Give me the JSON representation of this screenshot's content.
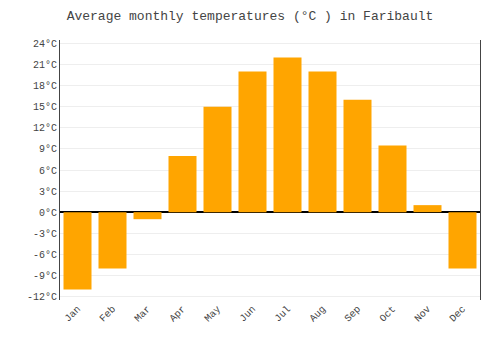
{
  "chart_data": {
    "type": "bar",
    "title": "Average monthly temperatures (°C ) in Faribault",
    "categories": [
      "Jan",
      "Feb",
      "Mar",
      "Apr",
      "May",
      "Jun",
      "Jul",
      "Aug",
      "Sep",
      "Oct",
      "Nov",
      "Dec"
    ],
    "values": [
      -11,
      -8,
      -1,
      8,
      15,
      20,
      22,
      20,
      16,
      9.5,
      1,
      -8
    ],
    "color": "#FFA500",
    "ylim": [
      -12.5,
      24.5
    ],
    "yticks": [
      {
        "value": -12,
        "label": "-12°C"
      },
      {
        "value": -9,
        "label": "-9°C"
      },
      {
        "value": -6,
        "label": "-6°C"
      },
      {
        "value": -3,
        "label": "-3°C"
      },
      {
        "value": 0,
        "label": "0°C"
      },
      {
        "value": 3,
        "label": "3°C"
      },
      {
        "value": 6,
        "label": "6°C"
      },
      {
        "value": 9,
        "label": "9°C"
      },
      {
        "value": 12,
        "label": "12°C"
      },
      {
        "value": 15,
        "label": "15°C"
      },
      {
        "value": 18,
        "label": "18°C"
      },
      {
        "value": 21,
        "label": "21°C"
      },
      {
        "value": 24,
        "label": "24°C"
      }
    ],
    "grid": true
  }
}
